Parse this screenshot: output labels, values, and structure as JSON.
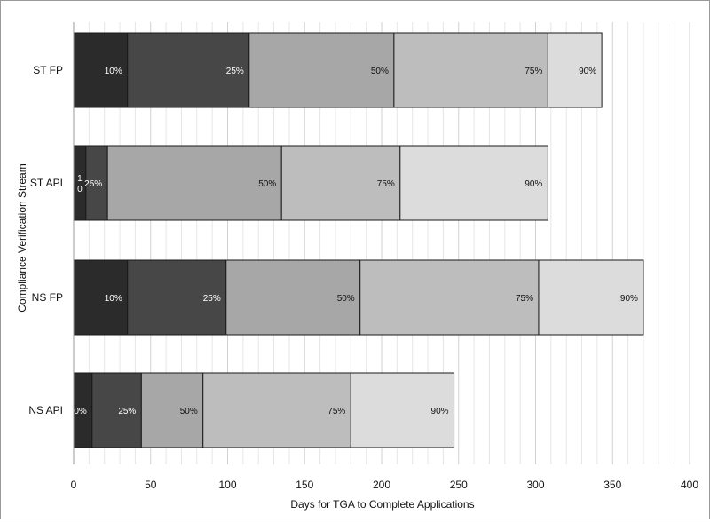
{
  "chart_data": {
    "type": "bar",
    "orientation": "horizontal",
    "stacked": true,
    "categories": [
      "ST FP",
      "ST API",
      "NS FP",
      "NS API"
    ],
    "series": [
      {
        "name": "10%",
        "values": [
          35,
          8,
          35,
          12
        ],
        "labels": [
          "10%",
          "10",
          "10%",
          "10%"
        ],
        "color": "#2b2b2b"
      },
      {
        "name": "25%",
        "values": [
          79,
          14,
          64,
          32
        ],
        "labels": [
          "25%",
          "25%",
          "25%",
          "25%"
        ],
        "color": "#474747"
      },
      {
        "name": "50%",
        "values": [
          94,
          113,
          87,
          40
        ],
        "labels": [
          "50%",
          "50%",
          "50%",
          "50%"
        ],
        "color": "#a7a7a7"
      },
      {
        "name": "75%",
        "values": [
          100,
          77,
          116,
          96
        ],
        "labels": [
          "75%",
          "75%",
          "75%",
          "75%"
        ],
        "color": "#bdbdbd"
      },
      {
        "name": "90%",
        "values": [
          35,
          96,
          68,
          67
        ],
        "labels": [
          "90%",
          "90%",
          "90%",
          "90%"
        ],
        "color": "#dcdcdc"
      }
    ],
    "xlabel": "Days for TGA to Complete Applications",
    "ylabel": "Compliance Verification Stream",
    "xlim": [
      0,
      400
    ],
    "xticks": [
      0,
      50,
      100,
      150,
      200,
      250,
      300,
      350,
      400
    ],
    "grid": true
  }
}
